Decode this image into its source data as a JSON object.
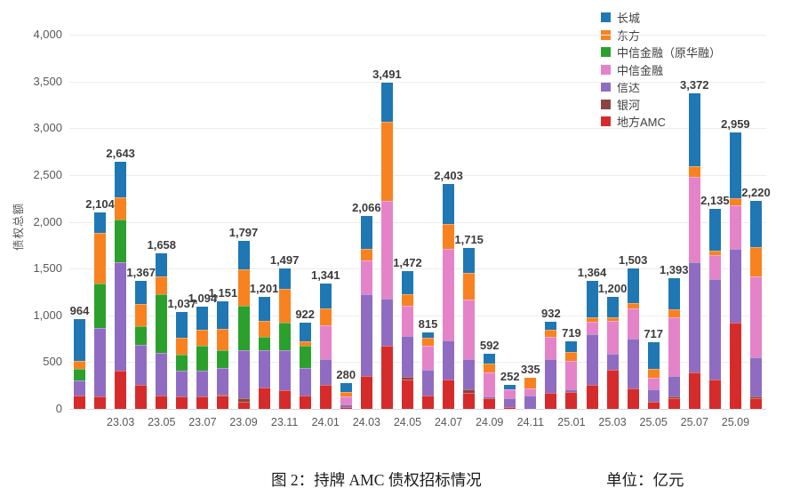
{
  "figure": {
    "caption_title": "图 2：持牌 AMC 债权招标情况",
    "unit_note": "单位：亿元"
  },
  "chart_data": {
    "type": "bar",
    "stacked": true,
    "title": "图 2：持牌 AMC 债权招标情况",
    "unit": "亿元",
    "ylabel": "债权总额",
    "ylim": [
      0,
      4000
    ],
    "yticks": [
      0,
      500,
      1000,
      1500,
      2000,
      2500,
      3000,
      3500,
      4000
    ],
    "grid": true,
    "legend_position": "top-right",
    "categories": [
      "23.01",
      "23.02",
      "23.03",
      "23.04",
      "23.05",
      "23.06",
      "23.07",
      "23.08",
      "23.09",
      "23.10",
      "23.11",
      "23.12",
      "24.01",
      "24.02",
      "24.03",
      "24.04",
      "24.05",
      "24.06",
      "24.07",
      "24.08",
      "24.09",
      "24.10",
      "24.11",
      "24.12",
      "25.01",
      "25.02",
      "25.03",
      "25.04",
      "25.05",
      "25.06",
      "25.07",
      "25.08",
      "25.09",
      "25.10"
    ],
    "x_axis_shown_labels": [
      "23.03",
      "23.05",
      "23.07",
      "23.09",
      "23.11",
      "24.01",
      "24.03",
      "24.05",
      "24.07",
      "24.09",
      "24.11",
      "25.01",
      "25.03",
      "25.05",
      "25.07",
      "25.09"
    ],
    "totals": [
      964,
      2104,
      2643,
      1367,
      1658,
      1037,
      1094,
      1151,
      1797,
      1201,
      1497,
      922,
      1341,
      280,
      2066,
      3491,
      1472,
      815,
      2403,
      1715,
      592,
      252,
      335,
      932,
      719,
      1364,
      1200,
      1503,
      717,
      1393,
      3372,
      2135,
      2959,
      2220
    ],
    "bar_labels": [
      "964",
      "2,104",
      "2,643",
      "1,367",
      "1,658",
      "1,037",
      "1,094",
      "1,151",
      "1,797",
      "1,201",
      "1,497",
      "922",
      "1,341",
      "280",
      "2,066",
      "3,491",
      "1,472",
      "815",
      "2,403",
      "1,715",
      "592",
      "252",
      "335",
      "932",
      "719",
      "1,364",
      "1,200",
      "1,503",
      "717",
      "1,393",
      "3,372",
      "2,135",
      "2,959",
      "2,220"
    ],
    "stack_order_bottom_to_top": [
      "地方AMC",
      "银河",
      "信达",
      "中信金融",
      "中信金融（原华融）",
      "东方",
      "长城"
    ],
    "series": [
      {
        "name": "长城",
        "color": "#1F77B4",
        "values": [
          454,
          226,
          383,
          249,
          243,
          280,
          248,
          296,
          307,
          256,
          218,
          201,
          271,
          100,
          356,
          426,
          242,
          55,
          430,
          260,
          111,
          47,
          0,
          87,
          114,
          381,
          220,
          375,
          287,
          333,
          777,
          440,
          704,
          490
        ]
      },
      {
        "name": "东方",
        "color": "#F8821F",
        "values": [
          85,
          541,
          240,
          233,
          190,
          173,
          173,
          230,
          385,
          175,
          354,
          48,
          175,
          50,
          125,
          845,
          125,
          90,
          260,
          290,
          96,
          0,
          115,
          80,
          95,
          55,
          40,
          58,
          95,
          85,
          115,
          50,
          75,
          310
        ]
      },
      {
        "name": "中信金融（原华融）",
        "color": "#2CA02C",
        "values": [
          125,
          472,
          455,
          200,
          625,
          171,
          269,
          190,
          480,
          145,
          300,
          240,
          0,
          0,
          0,
          0,
          0,
          0,
          0,
          0,
          0,
          0,
          0,
          0,
          0,
          0,
          0,
          0,
          0,
          0,
          0,
          0,
          0,
          0
        ]
      },
      {
        "name": "中信金融",
        "color": "#E583C9",
        "values": [
          0,
          0,
          0,
          0,
          0,
          0,
          0,
          0,
          0,
          0,
          0,
          0,
          365,
          80,
          355,
          1040,
          325,
          255,
          978,
          635,
          250,
          90,
          80,
          235,
          305,
          128,
          350,
          320,
          130,
          625,
          915,
          255,
          470,
          865
        ]
      },
      {
        "name": "信达",
        "color": "#8F6CC2",
        "values": [
          155,
          730,
          1160,
          430,
          455,
          278,
          269,
          280,
          515,
          395,
          425,
          288,
          275,
          30,
          880,
          510,
          440,
          270,
          420,
          325,
          20,
          95,
          140,
          355,
          20,
          545,
          175,
          530,
          125,
          215,
          1180,
          1075,
          785,
          420
        ]
      },
      {
        "name": "银河",
        "color": "#8B4540",
        "values": [
          0,
          0,
          0,
          0,
          0,
          0,
          0,
          10,
          30,
          0,
          0,
          0,
          0,
          0,
          0,
          0,
          25,
          0,
          0,
          30,
          0,
          0,
          0,
          0,
          0,
          0,
          0,
          0,
          0,
          25,
          0,
          0,
          0,
          25
        ]
      },
      {
        "name": "地方AMC",
        "color": "#D62B2B",
        "values": [
          145,
          135,
          405,
          255,
          145,
          135,
          135,
          145,
          80,
          230,
          200,
          145,
          255,
          20,
          350,
          670,
          315,
          145,
          315,
          175,
          115,
          20,
          0,
          175,
          185,
          255,
          415,
          220,
          80,
          110,
          385,
          315,
          925,
          110
        ]
      }
    ]
  }
}
